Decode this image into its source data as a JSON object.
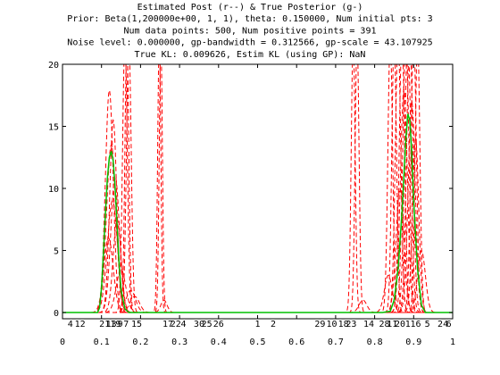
{
  "chart_data": {
    "type": "line",
    "title": [
      "Estimated Post (r--) & True Posterior (g-)",
      "Prior: Beta(1,200000e+00, 1, 1), theta: 0.150000, Num initial pts: 3",
      "Num data points: 500, Num positive points = 391",
      "Noise level: 0.000000, gp-bandwidth = 0.312566, gp-scale = 43.107925",
      "True KL: 0.009626, Estim KL (using GP): NaN"
    ],
    "xlim": [
      0,
      1
    ],
    "ylim": [
      -0.5,
      20
    ],
    "x_ticks": [
      "0",
      "0.1",
      "0.2",
      "0.3",
      "0.4",
      "0.5",
      "0.6",
      "0.7",
      "0.8",
      "0.9",
      "1"
    ],
    "y_ticks": [
      "0",
      "5",
      "10",
      "15",
      "20"
    ],
    "grid": false,
    "colors": {
      "estimated": "#ff0000",
      "true": "#00c000",
      "axis": "#000000"
    },
    "true_posterior": {
      "name": "True Posterior (g-)",
      "style": "solid",
      "points": [
        [
          0.0,
          0
        ],
        [
          0.09,
          0
        ],
        [
          0.095,
          0.4
        ],
        [
          0.1,
          2.0
        ],
        [
          0.105,
          4.8
        ],
        [
          0.11,
          8.0
        ],
        [
          0.115,
          10.8
        ],
        [
          0.12,
          12.5
        ],
        [
          0.125,
          13.0
        ],
        [
          0.13,
          12.2
        ],
        [
          0.135,
          10.0
        ],
        [
          0.14,
          7.0
        ],
        [
          0.145,
          4.0
        ],
        [
          0.15,
          1.8
        ],
        [
          0.16,
          0.3
        ],
        [
          0.17,
          0
        ],
        [
          0.82,
          0
        ],
        [
          0.84,
          0.1
        ],
        [
          0.85,
          1.0
        ],
        [
          0.86,
          3.5
        ],
        [
          0.87,
          8.0
        ],
        [
          0.875,
          11.0
        ],
        [
          0.88,
          14.0
        ],
        [
          0.885,
          16.0
        ],
        [
          0.89,
          15.5
        ],
        [
          0.895,
          13.0
        ],
        [
          0.9,
          9.0
        ],
        [
          0.91,
          3.5
        ],
        [
          0.92,
          0.6
        ],
        [
          0.93,
          0
        ],
        [
          1.0,
          0
        ]
      ]
    },
    "estimated_posteriors": [
      {
        "peak_x": 0.12,
        "height": 17.9,
        "width": 0.01
      },
      {
        "peak_x": 0.125,
        "height": 13.5,
        "width": 0.012
      },
      {
        "peak_x": 0.13,
        "height": 15.5,
        "width": 0.009
      },
      {
        "peak_x": 0.135,
        "height": 11.0,
        "width": 0.011
      },
      {
        "peak_x": 0.128,
        "height": 9.0,
        "width": 0.013
      },
      {
        "peak_x": 0.14,
        "height": 7.5,
        "width": 0.01
      },
      {
        "peak_x": 0.118,
        "height": 6.0,
        "width": 0.012
      },
      {
        "peak_x": 0.15,
        "height": 3.5,
        "width": 0.012
      },
      {
        "peak_x": 0.16,
        "height": 22.0,
        "width": 0.006
      },
      {
        "peak_x": 0.165,
        "height": 22.0,
        "width": 0.005
      },
      {
        "peak_x": 0.17,
        "height": 22.0,
        "width": 0.006
      },
      {
        "peak_x": 0.175,
        "height": 1.8,
        "width": 0.012
      },
      {
        "peak_x": 0.185,
        "height": 1.3,
        "width": 0.012
      },
      {
        "peak_x": 0.248,
        "height": 22.0,
        "width": 0.004
      },
      {
        "peak_x": 0.252,
        "height": 22.0,
        "width": 0.004
      },
      {
        "peak_x": 0.26,
        "height": 1.0,
        "width": 0.008
      },
      {
        "peak_x": 0.745,
        "height": 22.0,
        "width": 0.005
      },
      {
        "peak_x": 0.755,
        "height": 22.0,
        "width": 0.005
      },
      {
        "peak_x": 0.77,
        "height": 1.0,
        "width": 0.01
      },
      {
        "peak_x": 0.84,
        "height": 22.0,
        "width": 0.006
      },
      {
        "peak_x": 0.85,
        "height": 22.0,
        "width": 0.006
      },
      {
        "peak_x": 0.86,
        "height": 22.0,
        "width": 0.007
      },
      {
        "peak_x": 0.87,
        "height": 22.0,
        "width": 0.007
      },
      {
        "peak_x": 0.875,
        "height": 18.0,
        "width": 0.009
      },
      {
        "peak_x": 0.88,
        "height": 22.0,
        "width": 0.008
      },
      {
        "peak_x": 0.885,
        "height": 22.0,
        "width": 0.008
      },
      {
        "peak_x": 0.89,
        "height": 22.0,
        "width": 0.008
      },
      {
        "peak_x": 0.895,
        "height": 17.0,
        "width": 0.009
      },
      {
        "peak_x": 0.9,
        "height": 22.0,
        "width": 0.007
      },
      {
        "peak_x": 0.905,
        "height": 14.0,
        "width": 0.008
      },
      {
        "peak_x": 0.91,
        "height": 22.0,
        "width": 0.006
      },
      {
        "peak_x": 0.865,
        "height": 10.0,
        "width": 0.01
      },
      {
        "peak_x": 0.92,
        "height": 5.0,
        "width": 0.01
      },
      {
        "peak_x": 0.835,
        "height": 3.0,
        "width": 0.01
      }
    ],
    "point_labels": [
      {
        "text": "4",
        "x": 0.02
      },
      {
        "text": "12",
        "x": 0.045
      },
      {
        "text": "21",
        "x": 0.108
      },
      {
        "text": "13",
        "x": 0.125
      },
      {
        "text": "19",
        "x": 0.136
      },
      {
        "text": "9",
        "x": 0.148
      },
      {
        "text": "7",
        "x": 0.163
      },
      {
        "text": "15",
        "x": 0.19
      },
      {
        "text": "17",
        "x": 0.27
      },
      {
        "text": "22",
        "x": 0.29
      },
      {
        "text": "4",
        "x": 0.31
      },
      {
        "text": "30",
        "x": 0.35
      },
      {
        "text": "25",
        "x": 0.37
      },
      {
        "text": "26",
        "x": 0.4
      },
      {
        "text": "1",
        "x": 0.5
      },
      {
        "text": "2",
        "x": 0.54
      },
      {
        "text": "29",
        "x": 0.66
      },
      {
        "text": "10",
        "x": 0.69
      },
      {
        "text": "18",
        "x": 0.72
      },
      {
        "text": "23",
        "x": 0.74
      },
      {
        "text": "14",
        "x": 0.785
      },
      {
        "text": "28",
        "x": 0.825
      },
      {
        "text": "11",
        "x": 0.845
      },
      {
        "text": "20",
        "x": 0.865
      },
      {
        "text": "1",
        "x": 0.885
      },
      {
        "text": "16",
        "x": 0.905
      },
      {
        "text": "5",
        "x": 0.935
      },
      {
        "text": "24",
        "x": 0.975
      },
      {
        "text": "6",
        "x": 0.99
      }
    ]
  }
}
